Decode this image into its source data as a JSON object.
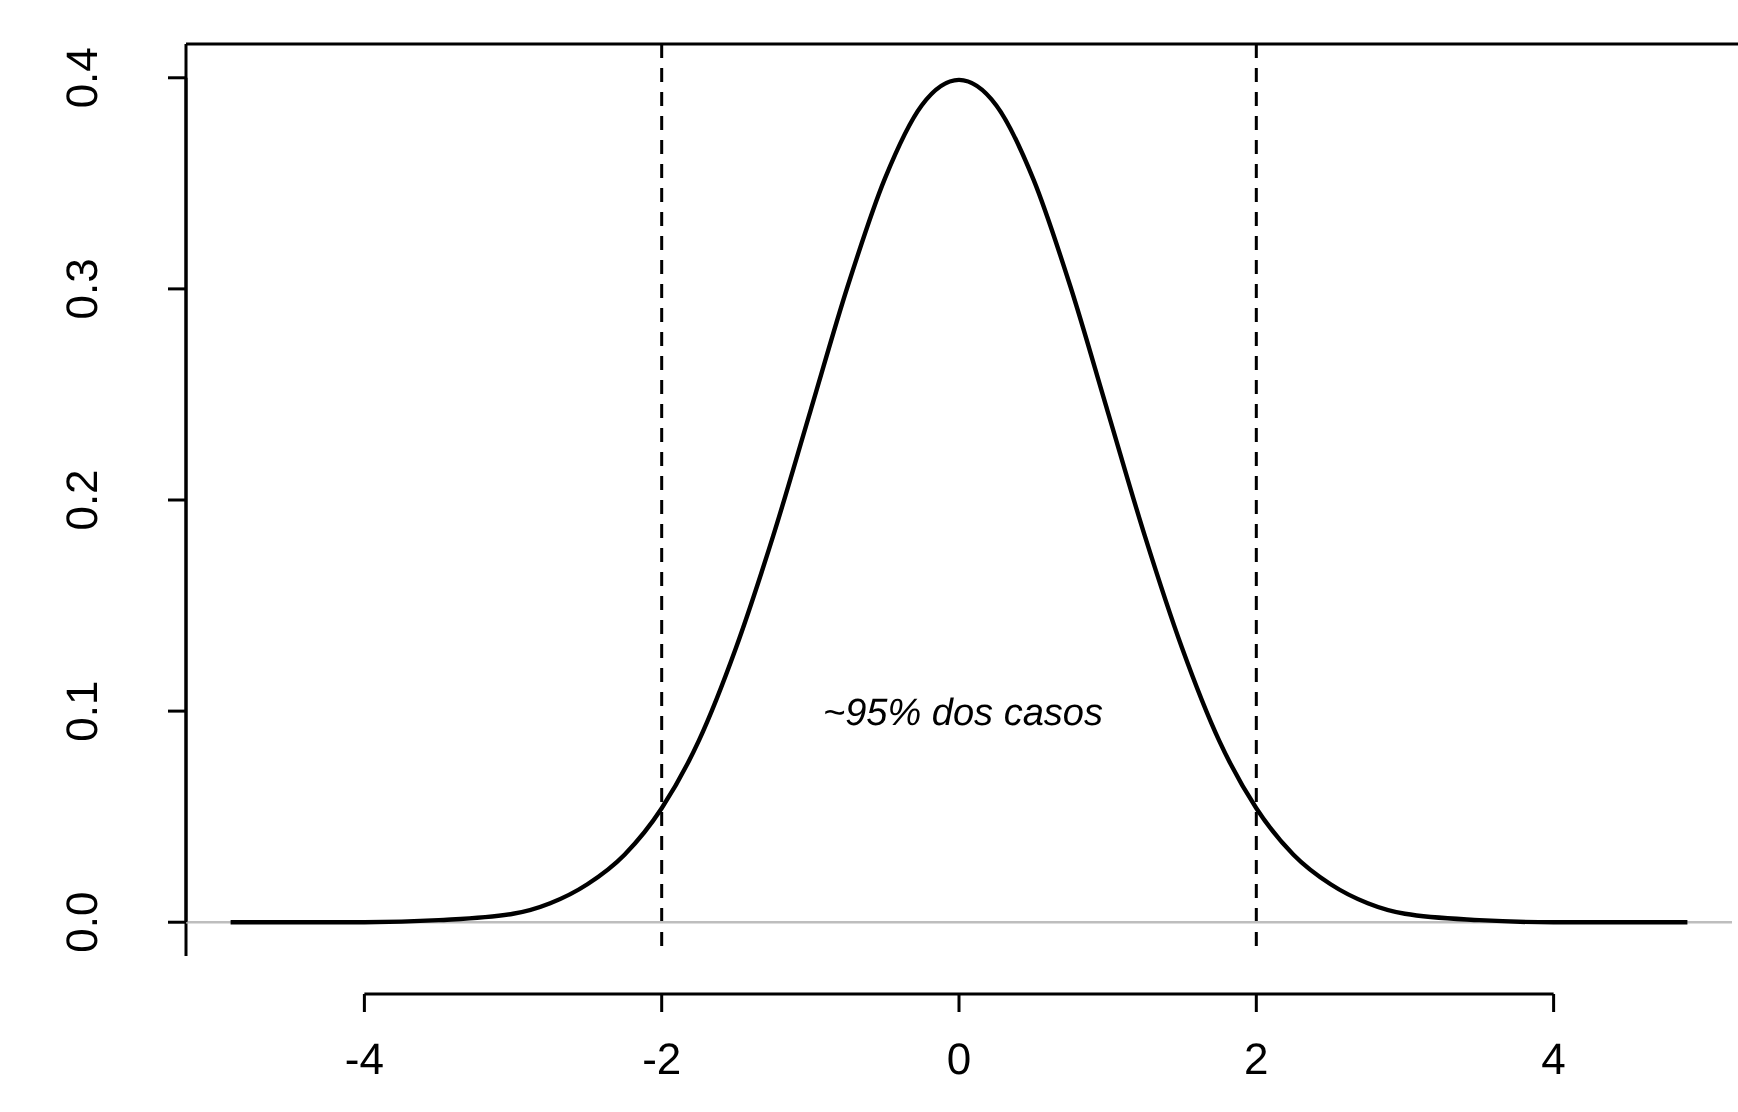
{
  "chart_data": {
    "type": "line",
    "x": [
      -4.9,
      -4.5,
      -4,
      -3.5,
      -3,
      -2.75,
      -2.5,
      -2.25,
      -2,
      -1.75,
      -1.5,
      -1.25,
      -1,
      -0.75,
      -0.5,
      -0.25,
      0,
      0.25,
      0.5,
      0.75,
      1,
      1.25,
      1.5,
      1.75,
      2,
      2.25,
      2.5,
      2.75,
      3,
      3.5,
      4,
      4.5,
      4.9
    ],
    "series": [
      {
        "color": "#000000",
        "values": [
          0.0,
          0.0,
          0.0,
          0.001,
          0.004,
          0.009,
          0.018,
          0.032,
          0.054,
          0.086,
          0.13,
          0.183,
          0.242,
          0.301,
          0.352,
          0.387,
          0.399,
          0.387,
          0.352,
          0.301,
          0.242,
          0.183,
          0.13,
          0.086,
          0.054,
          0.032,
          0.018,
          0.009,
          0.004,
          0.001,
          0.0,
          0.0,
          0.0
        ]
      }
    ],
    "xlim": [
      -5.2,
      5.2
    ],
    "ylim": [
      -0.016,
      0.416
    ],
    "xticks": [
      -4,
      -2,
      0,
      2,
      4
    ],
    "yticks": [
      {
        "value": 0,
        "label": "0.0"
      },
      0.1,
      0.2,
      0.3,
      0.4
    ],
    "ref_lines": [
      {
        "axis": "x",
        "value": -2,
        "color": "#000000",
        "line_style": "dashed"
      },
      {
        "axis": "x",
        "value": 2,
        "color": "#000000",
        "line_style": "dashed"
      },
      {
        "axis": "y",
        "value": 0,
        "color": "#bebebe",
        "line_style": "solid"
      }
    ],
    "annotations": [
      "~95% dos casos"
    ],
    "grid": false,
    "line_style": "solid"
  }
}
